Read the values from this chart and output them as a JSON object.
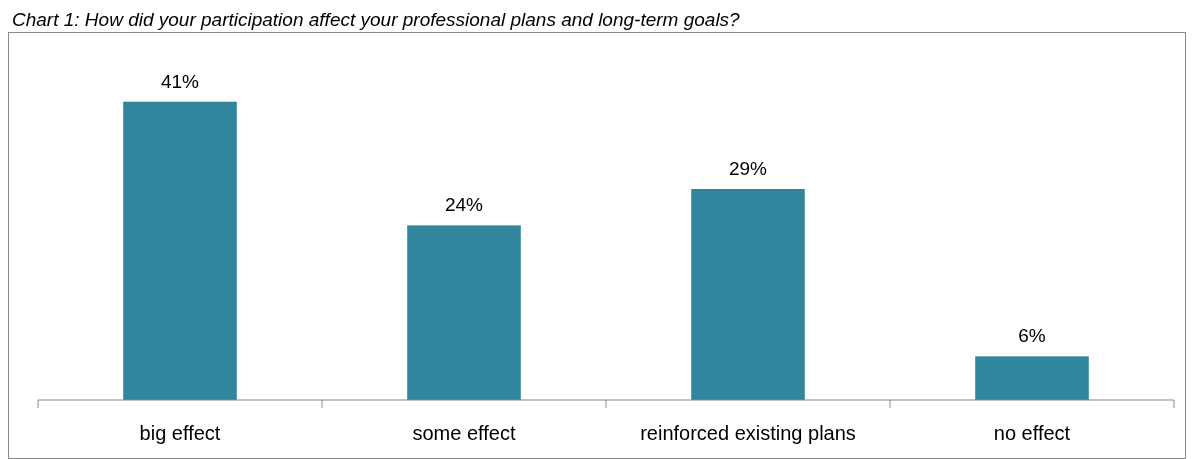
{
  "chart_data": {
    "type": "bar",
    "title": "Chart 1: How did your participation affect your professional plans and long-term goals?",
    "categories": [
      "big effect",
      "some effect",
      "reinforced existing plans",
      "no effect"
    ],
    "values": [
      41,
      24,
      29,
      6
    ],
    "value_labels": [
      "41%",
      "24%",
      "29%",
      "6%"
    ],
    "color": "#31859c"
  }
}
